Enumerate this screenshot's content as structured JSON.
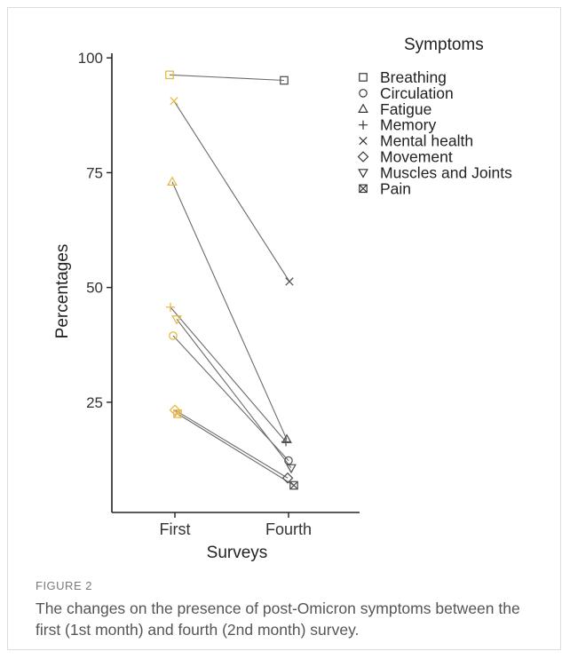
{
  "figure": {
    "label": "FIGURE 2",
    "caption": "The changes on the presence of post-Omicron symptoms between the first (1st month) and fourth (2nd month) survey."
  },
  "colors": {
    "first_survey": "#e8b84a",
    "fourth_survey": "#555555",
    "line": "#6b6b6b",
    "axis": "#222222",
    "text": "#222222"
  },
  "chart_data": {
    "type": "line",
    "title": "",
    "xlabel": "Surveys",
    "ylabel": "Percentages",
    "categories": [
      "First",
      "Fourth"
    ],
    "ylim": [
      1,
      101
    ],
    "yticks": [
      25,
      50,
      75,
      100
    ],
    "grid": false,
    "legend": {
      "title": "Symptoms",
      "position": "top-right"
    },
    "series": [
      {
        "name": "Breathing",
        "shape": "square",
        "values": [
          96.3,
          95.1
        ]
      },
      {
        "name": "Circulation",
        "shape": "circle",
        "values": [
          39.5,
          12.3
        ]
      },
      {
        "name": "Fatigue",
        "shape": "triangle-up",
        "values": [
          73.0,
          16.9
        ]
      },
      {
        "name": "Memory",
        "shape": "plus",
        "values": [
          45.7,
          16.4
        ]
      },
      {
        "name": "Mental health",
        "shape": "cross",
        "values": [
          90.6,
          51.3
        ]
      },
      {
        "name": "Movement",
        "shape": "diamond",
        "values": [
          23.3,
          8.5
        ]
      },
      {
        "name": "Muscles and Joints",
        "shape": "triangle-down",
        "values": [
          43.1,
          10.7
        ]
      },
      {
        "name": "Pain",
        "shape": "square-cross",
        "values": [
          22.5,
          6.9
        ]
      }
    ]
  }
}
